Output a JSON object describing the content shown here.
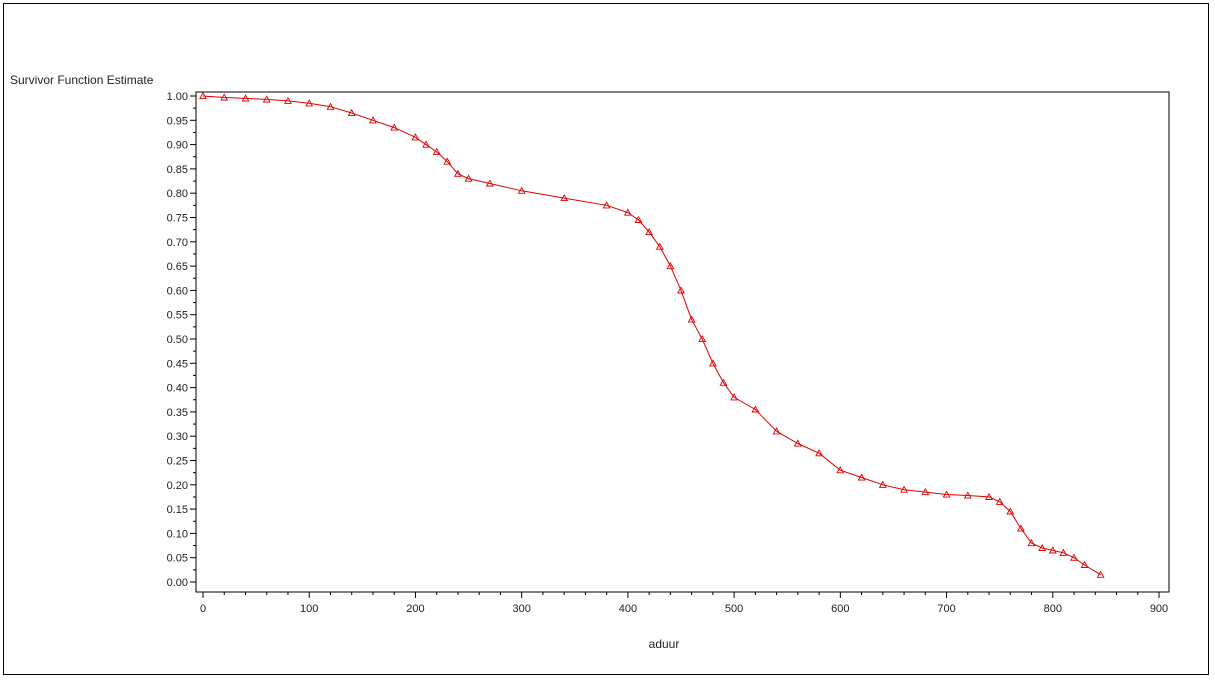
{
  "chart_data": {
    "type": "scatter",
    "title": "",
    "ylabel": "Survivor Function Estimate",
    "xlabel": "aduur",
    "xlim": [
      0,
      900
    ],
    "ylim": [
      0.0,
      1.0
    ],
    "x_ticks": [
      "0",
      "100",
      "200",
      "300",
      "400",
      "500",
      "600",
      "700",
      "800",
      "900"
    ],
    "y_ticks": [
      "0.00",
      "0.05",
      "0.10",
      "0.15",
      "0.20",
      "0.25",
      "0.30",
      "0.35",
      "0.40",
      "0.45",
      "0.50",
      "0.55",
      "0.60",
      "0.65",
      "0.70",
      "0.75",
      "0.80",
      "0.85",
      "0.90",
      "0.95",
      "1.00"
    ],
    "grid": false,
    "colors": {
      "series": "#e00000",
      "axis": "#000000"
    },
    "marker": "triangle",
    "series": [
      {
        "x": [
          0,
          20,
          40,
          60,
          80,
          100,
          120,
          140,
          160,
          180,
          200,
          210,
          220,
          230,
          240,
          250,
          270,
          300,
          340,
          380,
          400,
          410,
          420,
          430,
          440,
          450,
          460,
          470,
          480,
          490,
          500,
          520,
          540,
          560,
          580,
          600,
          620,
          640,
          660,
          680,
          700,
          720,
          740,
          750,
          760,
          770,
          780,
          790,
          800,
          810,
          820,
          830,
          845
        ],
        "y": [
          1.0,
          0.997,
          0.995,
          0.993,
          0.99,
          0.985,
          0.978,
          0.965,
          0.95,
          0.935,
          0.915,
          0.9,
          0.885,
          0.865,
          0.84,
          0.83,
          0.82,
          0.805,
          0.79,
          0.775,
          0.76,
          0.745,
          0.72,
          0.69,
          0.65,
          0.6,
          0.54,
          0.5,
          0.45,
          0.41,
          0.38,
          0.355,
          0.31,
          0.285,
          0.265,
          0.23,
          0.215,
          0.2,
          0.19,
          0.185,
          0.18,
          0.178,
          0.175,
          0.165,
          0.145,
          0.11,
          0.08,
          0.07,
          0.065,
          0.06,
          0.05,
          0.035,
          0.015
        ]
      }
    ]
  }
}
